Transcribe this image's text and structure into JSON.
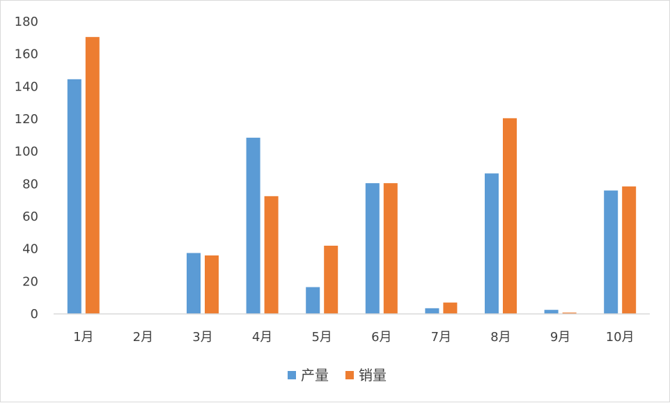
{
  "chart_data": {
    "type": "bar",
    "categories": [
      "1月",
      "2月",
      "3月",
      "4月",
      "5月",
      "6月",
      "7月",
      "8月",
      "9月",
      "10月"
    ],
    "series": [
      {
        "name": "产量",
        "color": "#5B9BD5",
        "values": [
          144.5,
          0,
          37.5,
          108.5,
          16.5,
          80.5,
          3.5,
          86.5,
          2.5,
          76
        ]
      },
      {
        "name": "销量",
        "color": "#ED7D31",
        "values": [
          170.5,
          0,
          36,
          72.5,
          42,
          80.5,
          7,
          120.5,
          0.8,
          78.5
        ]
      }
    ],
    "yticks": [
      "0",
      "20",
      "40",
      "60",
      "80",
      "100",
      "120",
      "140",
      "160",
      "180"
    ],
    "ylim": [
      0,
      180
    ],
    "grid": false,
    "legend": "bottom-center"
  }
}
